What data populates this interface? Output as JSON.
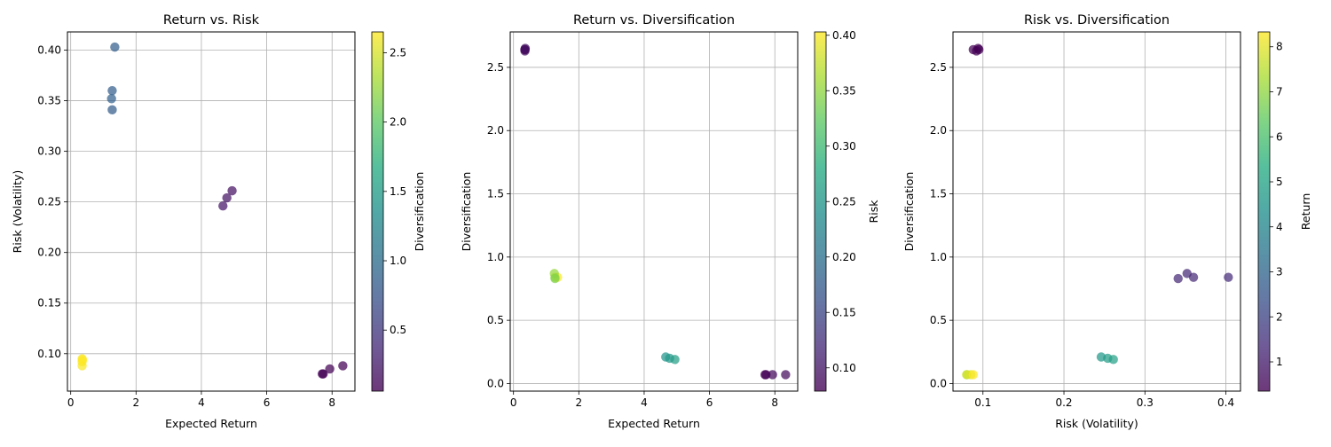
{
  "chart_data": [
    {
      "type": "scatter",
      "title": "Return vs. Risk",
      "xlabel": "Expected Return",
      "ylabel": "Risk (Volatility)",
      "xlim": [
        -0.1,
        8.7
      ],
      "ylim": [
        0.063,
        0.418
      ],
      "xticks": [
        0,
        2,
        4,
        6,
        8
      ],
      "xtick_labels": [
        "0",
        "2",
        "4",
        "6",
        "8"
      ],
      "yticks": [
        0.1,
        0.15,
        0.2,
        0.25,
        0.3,
        0.35,
        0.4
      ],
      "ytick_labels": [
        "0.10",
        "0.15",
        "0.20",
        "0.25",
        "0.30",
        "0.35",
        "0.40"
      ],
      "grid": true,
      "colorbar": {
        "label": "Diversification",
        "range": [
          0.06,
          2.65
        ],
        "ticks": [
          0.5,
          1.0,
          1.5,
          2.0,
          2.5
        ],
        "tick_labels": [
          "0.5",
          "1.0",
          "1.5",
          "2.0",
          "2.5"
        ],
        "colormap": "viridis"
      },
      "x_field": "return",
      "y_field": "risk",
      "color_field": "diversification"
    },
    {
      "type": "scatter",
      "title": "Return vs. Diversification",
      "xlabel": "Expected Return",
      "ylabel": "Diversification",
      "xlim": [
        -0.1,
        8.7
      ],
      "ylim": [
        -0.06,
        2.78
      ],
      "xticks": [
        0,
        2,
        4,
        6,
        8
      ],
      "xtick_labels": [
        "0",
        "2",
        "4",
        "6",
        "8"
      ],
      "yticks": [
        0.0,
        0.5,
        1.0,
        1.5,
        2.0,
        2.5
      ],
      "ytick_labels": [
        "0.0",
        "0.5",
        "1.0",
        "1.5",
        "2.0",
        "2.5"
      ],
      "grid": true,
      "colorbar": {
        "label": "Risk",
        "range": [
          0.079,
          0.403
        ],
        "ticks": [
          0.1,
          0.15,
          0.2,
          0.25,
          0.3,
          0.35,
          0.4
        ],
        "tick_labels": [
          "0.10",
          "0.15",
          "0.20",
          "0.25",
          "0.30",
          "0.35",
          "0.40"
        ],
        "colormap": "viridis"
      },
      "x_field": "return",
      "y_field": "diversification",
      "color_field": "risk"
    },
    {
      "type": "scatter",
      "title": "Risk vs. Diversification",
      "xlabel": "Risk (Volatility)",
      "ylabel": "Diversification",
      "xlim": [
        0.063,
        0.418
      ],
      "ylim": [
        -0.06,
        2.78
      ],
      "xticks": [
        0.1,
        0.2,
        0.3,
        0.4
      ],
      "xtick_labels": [
        "0.1",
        "0.2",
        "0.3",
        "0.4"
      ],
      "yticks": [
        0.0,
        0.5,
        1.0,
        1.5,
        2.0,
        2.5
      ],
      "ytick_labels": [
        "0.0",
        "0.5",
        "1.0",
        "1.5",
        "2.0",
        "2.5"
      ],
      "grid": true,
      "colorbar": {
        "label": "Return",
        "range": [
          0.35,
          8.33
        ],
        "ticks": [
          1,
          2,
          3,
          4,
          5,
          6,
          7,
          8
        ],
        "tick_labels": [
          "1",
          "2",
          "3",
          "4",
          "5",
          "6",
          "7",
          "8"
        ],
        "colormap": "viridis"
      },
      "x_field": "risk",
      "y_field": "diversification",
      "color_field": "return"
    }
  ],
  "points": [
    {
      "return": 0.35,
      "risk": 0.095,
      "diversification": 2.64
    },
    {
      "return": 0.35,
      "risk": 0.092,
      "diversification": 2.63
    },
    {
      "return": 0.35,
      "risk": 0.088,
      "diversification": 2.64
    },
    {
      "return": 0.36,
      "risk": 0.094,
      "diversification": 2.65
    },
    {
      "return": 1.35,
      "risk": 0.403,
      "diversification": 0.84
    },
    {
      "return": 1.27,
      "risk": 0.36,
      "diversification": 0.84
    },
    {
      "return": 1.25,
      "risk": 0.352,
      "diversification": 0.87
    },
    {
      "return": 1.27,
      "risk": 0.341,
      "diversification": 0.83
    },
    {
      "return": 4.66,
      "risk": 0.246,
      "diversification": 0.21
    },
    {
      "return": 4.78,
      "risk": 0.254,
      "diversification": 0.2
    },
    {
      "return": 4.94,
      "risk": 0.261,
      "diversification": 0.19
    },
    {
      "return": 7.7,
      "risk": 0.08,
      "diversification": 0.07
    },
    {
      "return": 7.73,
      "risk": 0.08,
      "diversification": 0.07
    },
    {
      "return": 7.93,
      "risk": 0.085,
      "diversification": 0.07
    },
    {
      "return": 8.33,
      "risk": 0.088,
      "diversification": 0.07
    }
  ]
}
